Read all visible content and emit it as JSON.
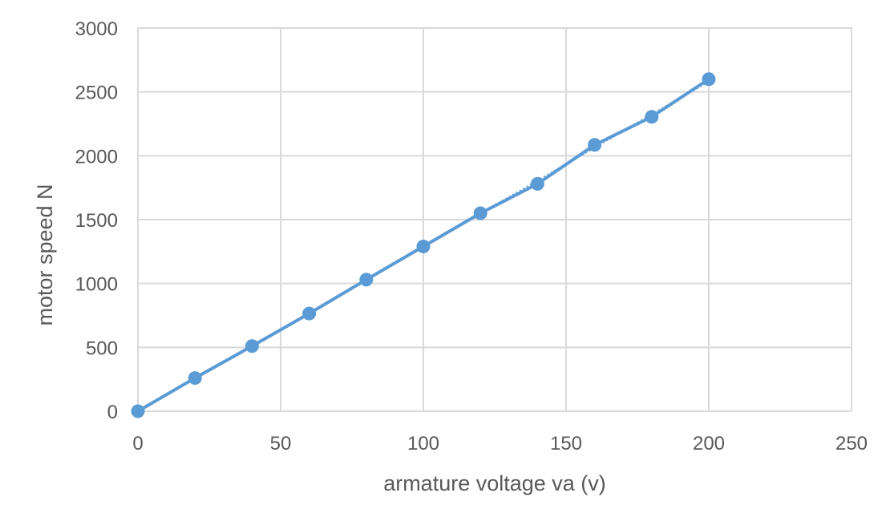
{
  "chart_data": {
    "type": "scatter",
    "title": "",
    "xlabel": "armature voltage va (v)",
    "ylabel": "motor speed N",
    "xlim": [
      0,
      250
    ],
    "ylim": [
      0,
      3000
    ],
    "x_ticks": [
      0,
      50,
      100,
      150,
      200,
      250
    ],
    "y_ticks": [
      0,
      500,
      1000,
      1500,
      2000,
      2500,
      3000
    ],
    "grid": true,
    "legend": "none",
    "series": [
      {
        "color": "#5b9bd5",
        "markers": true,
        "line": "straight",
        "linear_trendline": true,
        "x": [
          0,
          20,
          40,
          60,
          80,
          100,
          120,
          140,
          160,
          180,
          200
        ],
        "y": [
          0,
          260,
          510,
          765,
          1030,
          1290,
          1550,
          1780,
          2085,
          2305,
          2600
        ]
      }
    ]
  }
}
